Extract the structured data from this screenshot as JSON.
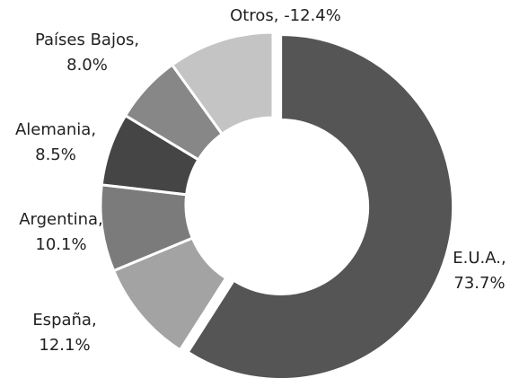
{
  "chart_data": {
    "type": "donut",
    "values": [
      73.7,
      12.1,
      10.1,
      8.5,
      8.0,
      -12.4
    ],
    "value_labels": [
      "E.U.A., 73.7%",
      "España, 12.1%",
      "Argentina, 10.1%",
      "Alemania, 8.5%",
      "Países Bajos, 8.0%",
      "Otros, -12.4%"
    ],
    "colors": [
      "#555555",
      "#a3a3a3",
      "#7b7b7b",
      "#454545",
      "#878787",
      "#c4c4c4"
    ],
    "exploded": [
      0
    ]
  }
}
